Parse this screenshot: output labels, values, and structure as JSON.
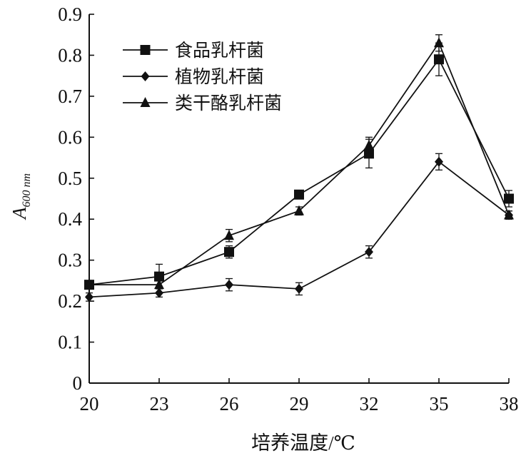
{
  "chart_data": {
    "type": "line",
    "xlabel": "培养温度/℃",
    "ylabel_main": "A",
    "ylabel_sub": "600 nm",
    "x": [
      20,
      23,
      26,
      29,
      32,
      35,
      38
    ],
    "x_tick_labels": [
      "20",
      "23",
      "26",
      "29",
      "32",
      "35",
      "38"
    ],
    "ylim": [
      0,
      0.9
    ],
    "y_ticks": [
      0,
      0.1,
      0.2,
      0.3,
      0.4,
      0.5,
      0.6,
      0.7,
      0.8,
      0.9
    ],
    "y_tick_labels": [
      "0",
      "0.1",
      "0.2",
      "0.3",
      "0.4",
      "0.5",
      "0.6",
      "0.7",
      "0.8",
      "0.9"
    ],
    "grid": false,
    "legend_position": "top-left",
    "series": [
      {
        "name": "食品乳杆菌",
        "marker": "square",
        "values": [
          0.24,
          0.26,
          0.32,
          0.46,
          0.56,
          0.79,
          0.45
        ],
        "errors": [
          0.01,
          0.03,
          0.015,
          0.01,
          0.035,
          0.04,
          0.02
        ]
      },
      {
        "name": "植物乳杆菌",
        "marker": "diamond",
        "values": [
          0.21,
          0.22,
          0.24,
          0.23,
          0.32,
          0.54,
          0.41
        ],
        "errors": [
          0.01,
          0.01,
          0.015,
          0.015,
          0.015,
          0.02,
          0.01
        ]
      },
      {
        "name": "类干酪乳杆菌",
        "marker": "triangle",
        "values": [
          0.24,
          0.24,
          0.36,
          0.42,
          0.58,
          0.83,
          0.41
        ],
        "errors": [
          0.01,
          0.01,
          0.015,
          0.01,
          0.02,
          0.02,
          0.01
        ]
      }
    ],
    "colors": {
      "line": "#111111",
      "marker": "#111111"
    }
  }
}
